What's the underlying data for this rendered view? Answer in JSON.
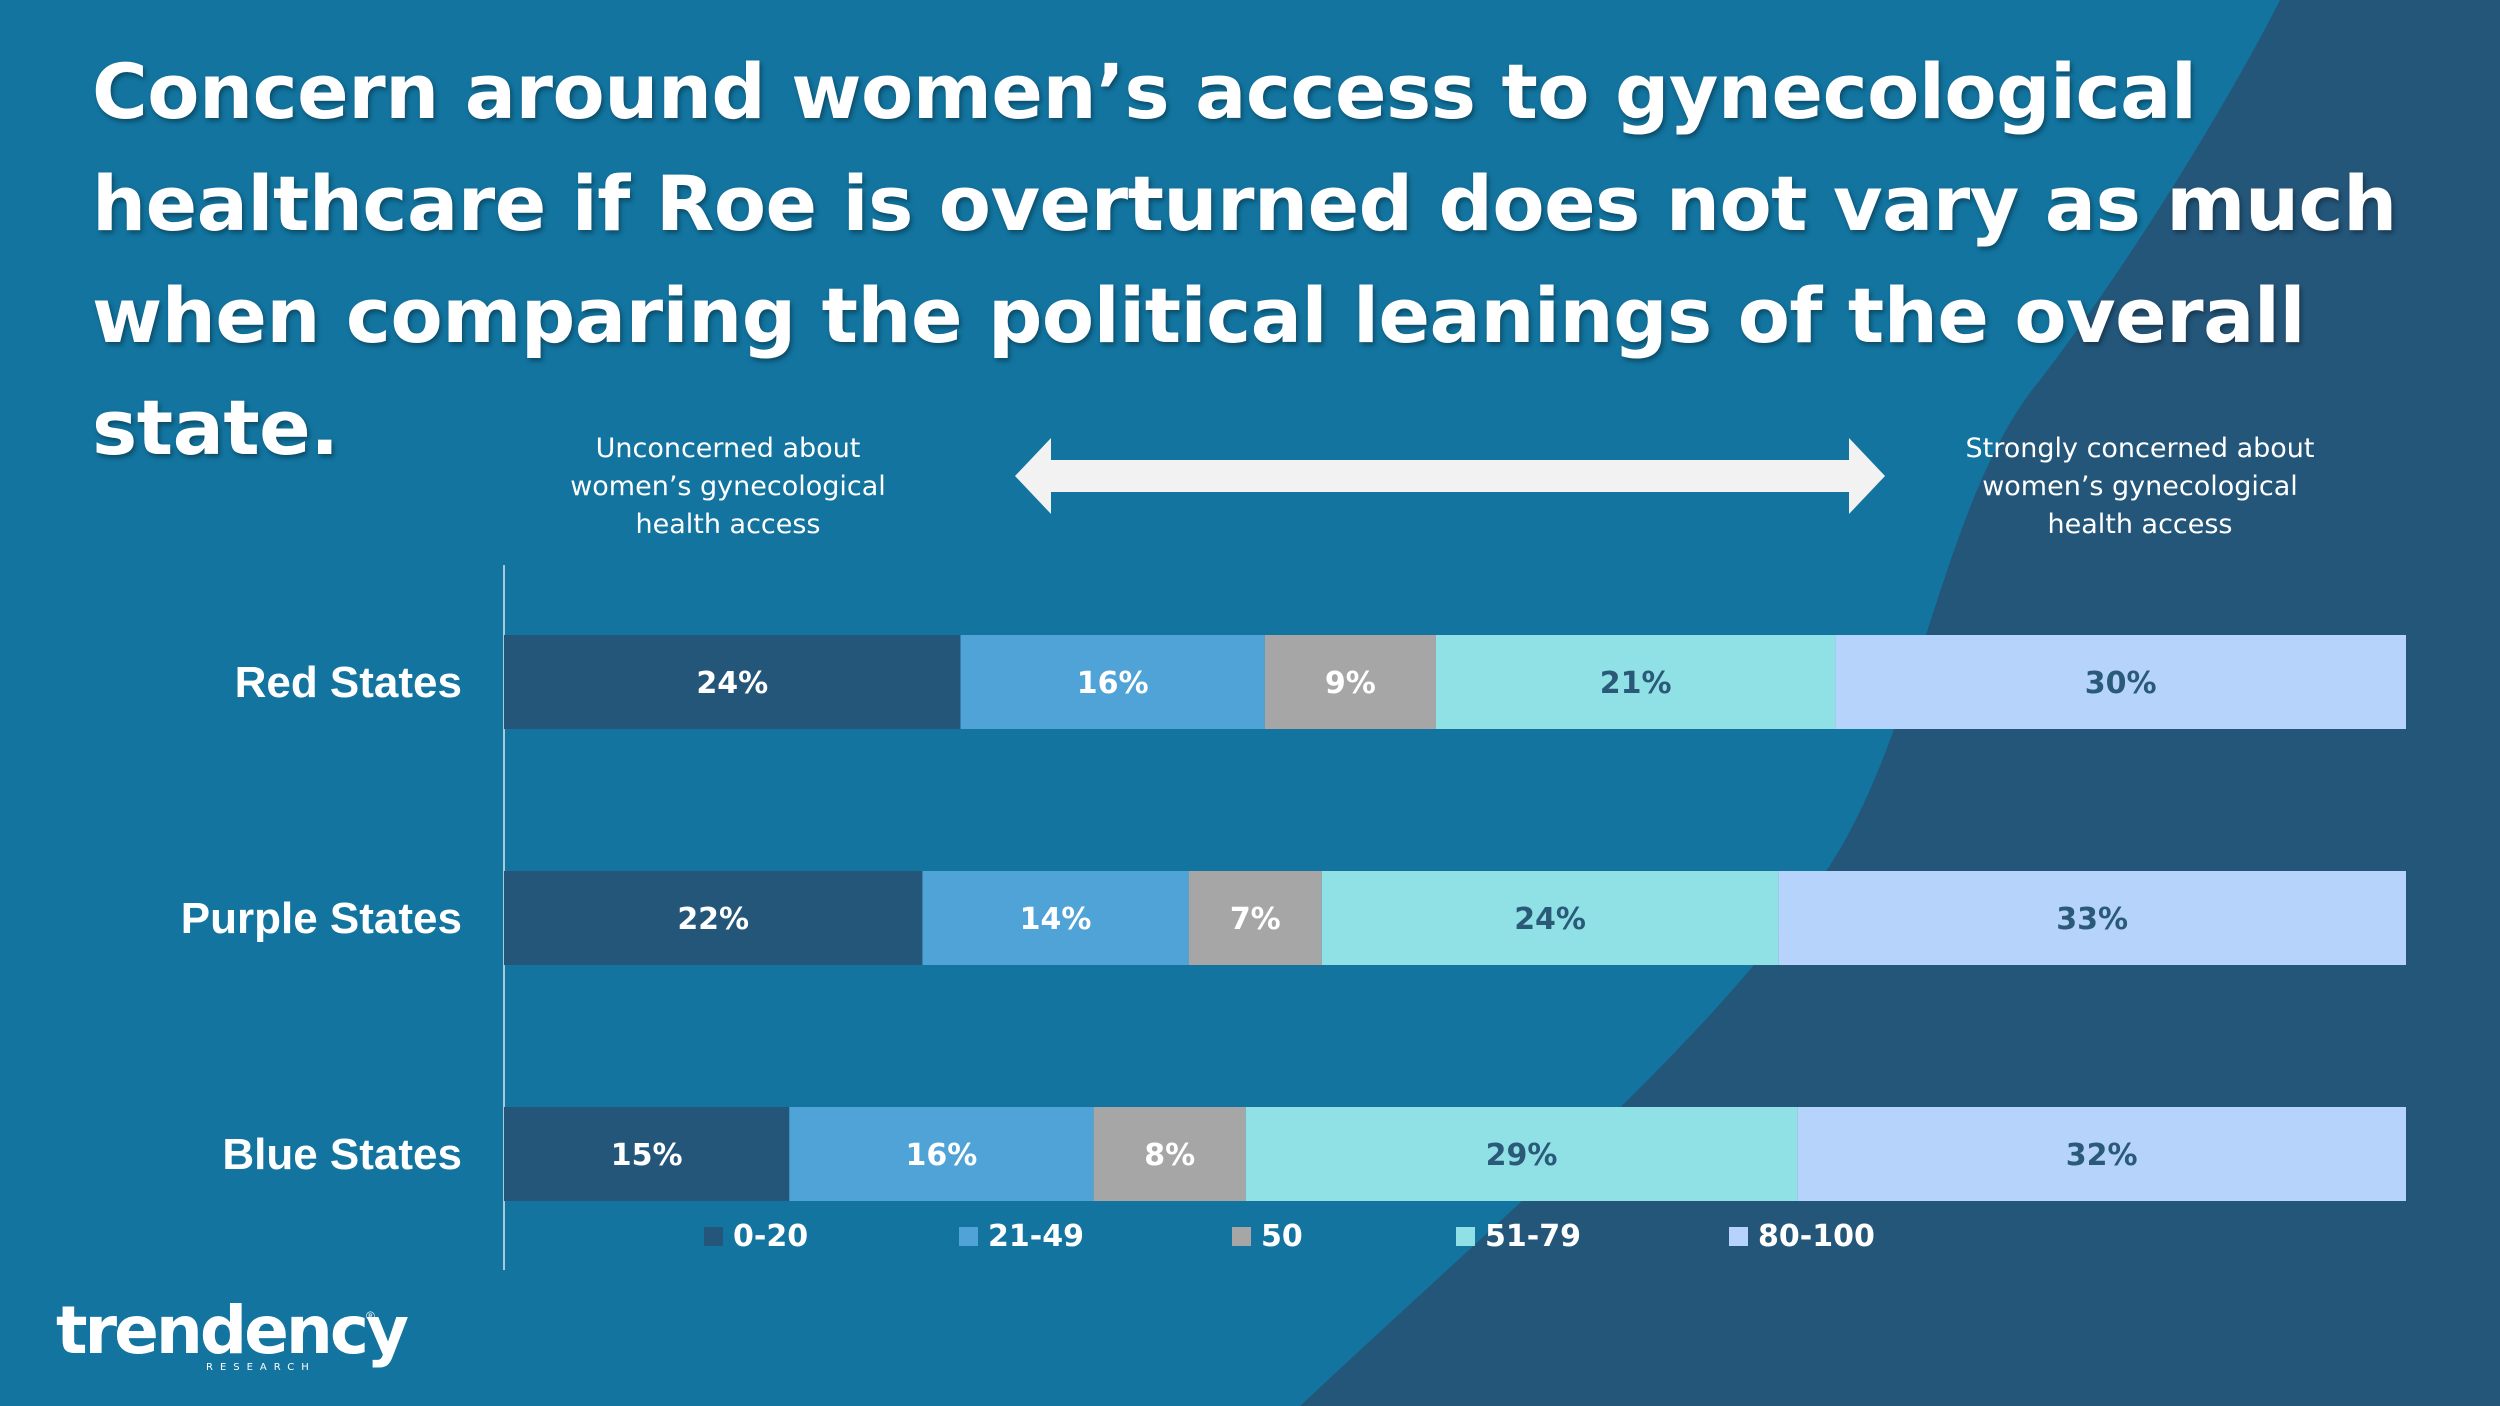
{
  "title": "Concern around women’s access to gynecological healthcare if Roe is overturned does not vary as much when comparing the political leanings of the overall state.",
  "scale": {
    "left_label": "Unconcerned about women’s gynecological health access",
    "right_label": "Strongly concerned about women’s gynecological health access"
  },
  "brand": {
    "name": "trendency",
    "sub": "RESEARCH",
    "mark": "®"
  },
  "colors": {
    "background": "#12749f",
    "background_dark": "#24567a",
    "text": "#ffffff"
  },
  "chart_data": {
    "type": "bar",
    "orientation": "horizontal",
    "stacked": true,
    "categories": [
      "Red States",
      "Purple States",
      "Blue States"
    ],
    "series": [
      {
        "name": "0-20",
        "color": "#24567a",
        "label_color": "#ffffff",
        "values": [
          24,
          22,
          15
        ]
      },
      {
        "name": "21-49",
        "color": "#4fa3d6",
        "label_color": "#ffffff",
        "values": [
          16,
          14,
          16
        ]
      },
      {
        "name": "50",
        "color": "#a6a6a6",
        "label_color": "#ffffff",
        "values": [
          9,
          7,
          8
        ]
      },
      {
        "name": "51-79",
        "color": "#8fe1e6",
        "label_color": "#2a5a78",
        "values": [
          21,
          24,
          29
        ]
      },
      {
        "name": "80-100",
        "color": "#b5d3fb",
        "label_color": "#2a5a78",
        "values": [
          30,
          33,
          32
        ]
      }
    ],
    "value_suffix": "%",
    "legend_position": "bottom",
    "grid": false
  }
}
